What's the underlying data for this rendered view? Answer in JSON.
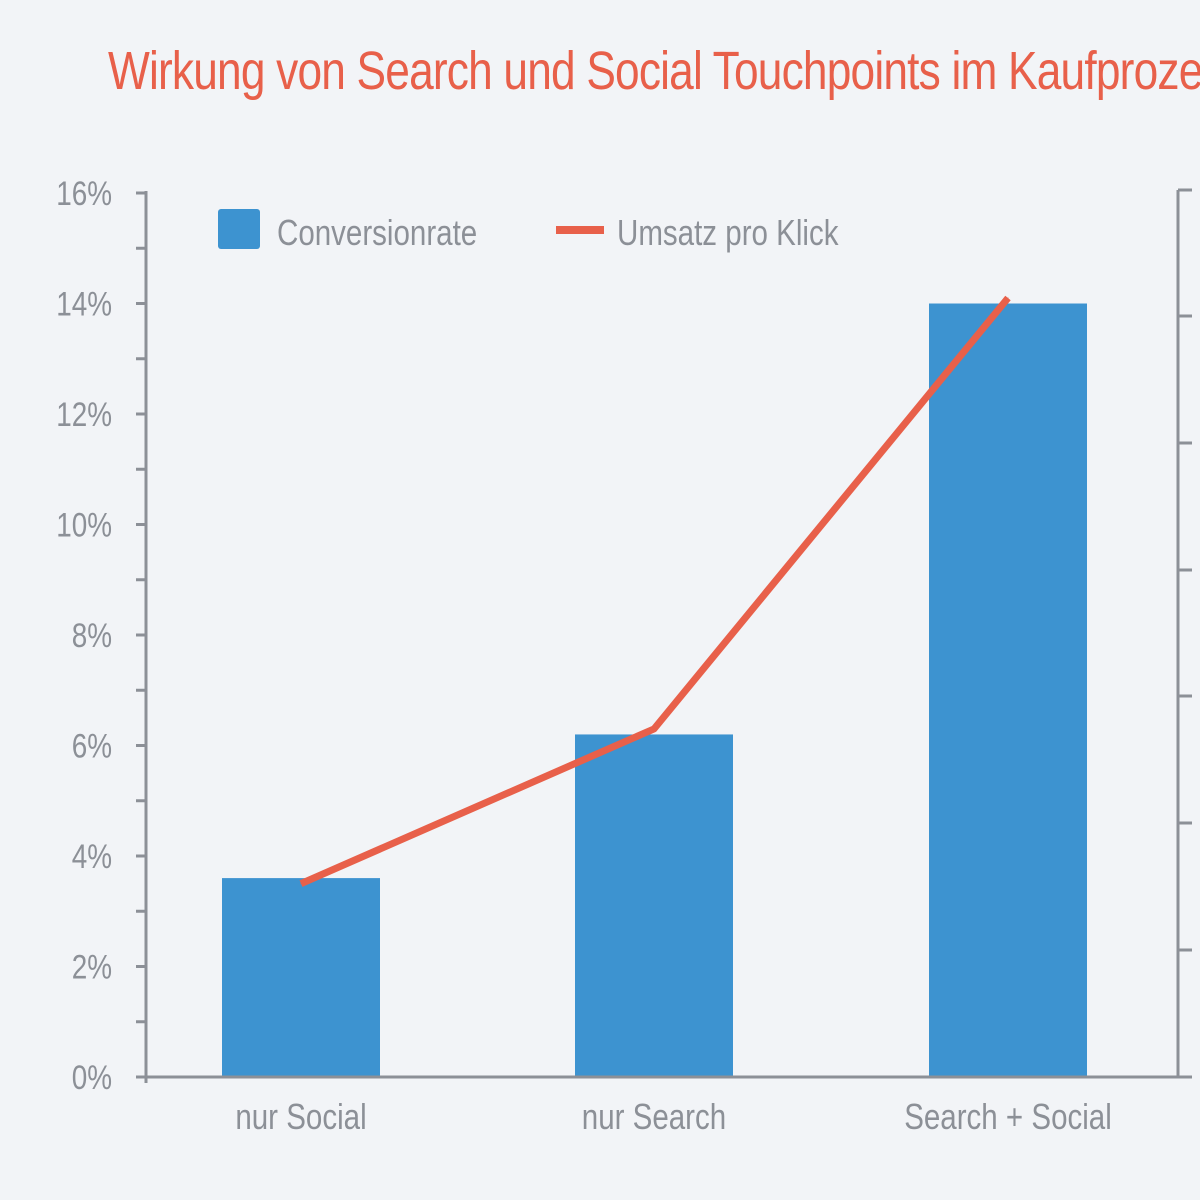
{
  "chart_data": {
    "type": "bar",
    "title": "Wirkung von Search und Social Touchpoints im Kaufprozess",
    "categories": [
      "nur Social",
      "nur Search",
      "Search + Social"
    ],
    "series": [
      {
        "name": "Conversionrate",
        "type": "bar",
        "axis": "left",
        "color": "#3d93d0",
        "values": [
          3.6,
          6.2,
          14.0
        ]
      },
      {
        "name": "Umsatz pro Klick",
        "type": "line",
        "axis": "right",
        "color": "#e8604a",
        "values": [
          3.5,
          6.3,
          14.1
        ]
      }
    ],
    "y_axis": {
      "min": 0,
      "max": 16,
      "major_step": 2,
      "minor_step": 1,
      "tick_labels": [
        "0%",
        "2%",
        "4%",
        "6%",
        "8%",
        "10%",
        "12%",
        "14%",
        "16%"
      ]
    },
    "y2_axis": {
      "tick_labels_shown": false,
      "tick_count": 7
    },
    "legend": {
      "placement": "top-left",
      "entries": [
        "Conversionrate",
        "Umsatz pro Klick"
      ]
    },
    "grid": false,
    "colors": {
      "bar": "#3d93d0",
      "line": "#e8604a",
      "axis": "#8c9097",
      "title": "#e8604a",
      "background": "#f2f4f7"
    }
  }
}
